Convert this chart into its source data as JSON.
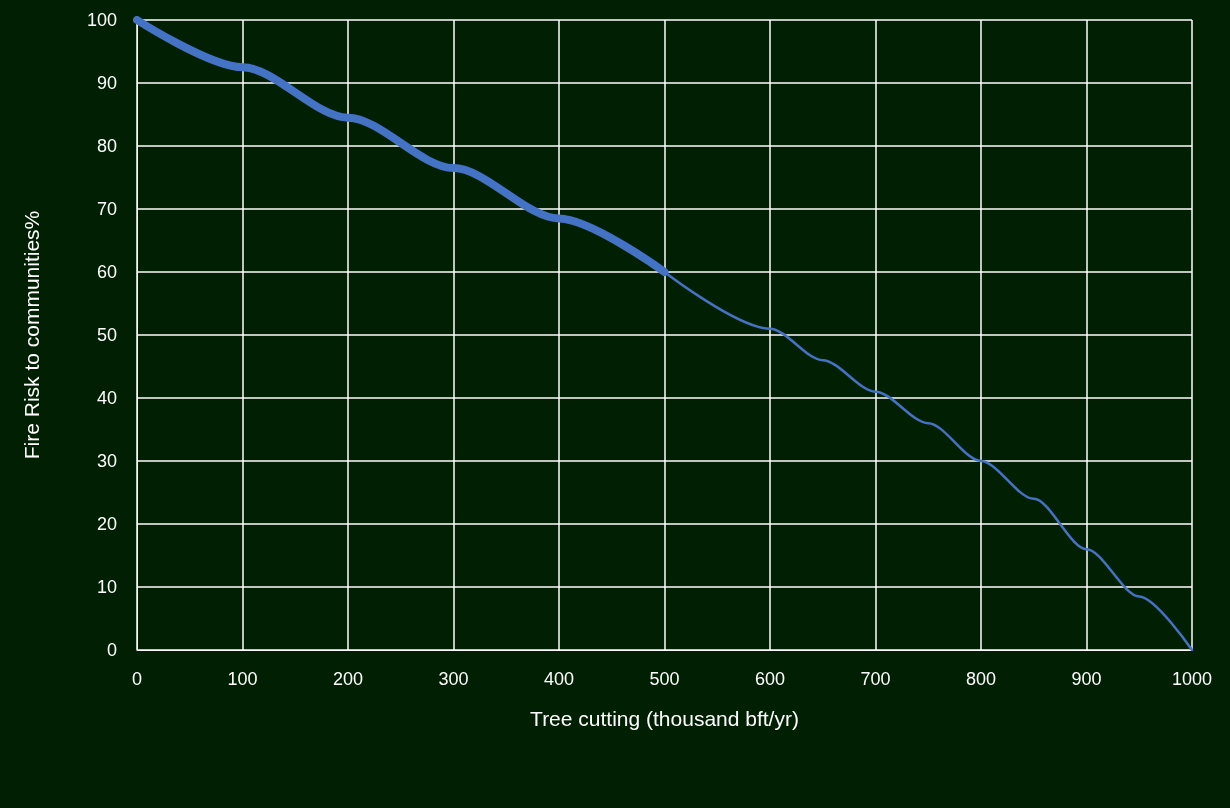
{
  "chart_data": {
    "type": "line",
    "xlabel": "Tree cutting (thousand bft/yr)",
    "ylabel": "Fire Risk to communities%",
    "series": [
      {
        "color": "#4472c4",
        "x": [
          0,
          100,
          200,
          300,
          400,
          500
        ],
        "values": [
          100,
          92.5,
          84.5,
          76.5,
          68.5,
          60
        ]
      },
      {
        "color": "#4472c4",
        "x": [
          500,
          600,
          650,
          700,
          750,
          800,
          850,
          900,
          950,
          1000
        ],
        "values": [
          60,
          51,
          46,
          41,
          36,
          30,
          24,
          16,
          8.5,
          0
        ]
      }
    ],
    "xlim": [
      0,
      1000
    ],
    "xticks": [
      0,
      100,
      200,
      300,
      400,
      500,
      600,
      700,
      800,
      900,
      1000
    ],
    "ylim": [
      0,
      100
    ],
    "yticks": [
      0,
      10,
      20,
      30,
      40,
      50,
      60,
      70,
      80,
      90,
      100
    ],
    "grid": true,
    "marker": "none",
    "line_style": "solid"
  }
}
